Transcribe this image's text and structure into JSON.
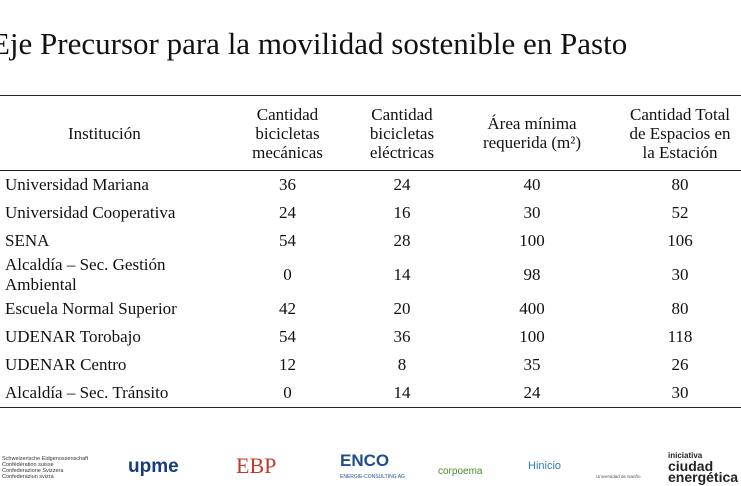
{
  "header": {
    "title": "Eje Precursor para la movilidad sostenible en Pasto"
  },
  "table": {
    "columns": [
      [
        "Institución"
      ],
      [
        "Cantidad",
        "bicicletas",
        "mecánicas"
      ],
      [
        "Cantidad",
        "bicicletas",
        "eléctricas"
      ],
      [
        "Área mínima",
        "requerida (m²)"
      ],
      [
        "Cantidad Total",
        "de Espacios en",
        "la Estación"
      ]
    ],
    "rows": [
      [
        "Universidad Mariana",
        36,
        24,
        40,
        80
      ],
      [
        "Universidad Cooperativa",
        24,
        16,
        30,
        52
      ],
      [
        "SENA",
        54,
        28,
        100,
        106
      ],
      [
        "Alcaldía – Sec. Gestión Ambiental",
        0,
        14,
        98,
        30
      ],
      [
        "Escuela Normal Superior",
        42,
        20,
        400,
        80
      ],
      [
        "UDENAR Torobajo",
        54,
        36,
        100,
        118
      ],
      [
        "UDENAR Centro",
        12,
        8,
        35,
        26
      ],
      [
        "Alcaldía – Sec. Tránsito",
        0,
        14,
        24,
        30
      ]
    ]
  },
  "footer": {
    "logos": [
      [
        "Schweizerische Eidgenossenschaft",
        "Confédération suisse",
        "Confederazione Svizzera",
        "Confederaziun svizra"
      ],
      [
        "upme"
      ],
      [
        "EBP"
      ],
      [
        "ENCO",
        "ENERGIE-CONSULTING AG"
      ],
      [
        "corpoema"
      ],
      [
        "Hinicio"
      ],
      [
        "Universidad de Nariño"
      ],
      [
        "iniciativa",
        "ciudad",
        "energética"
      ]
    ]
  }
}
